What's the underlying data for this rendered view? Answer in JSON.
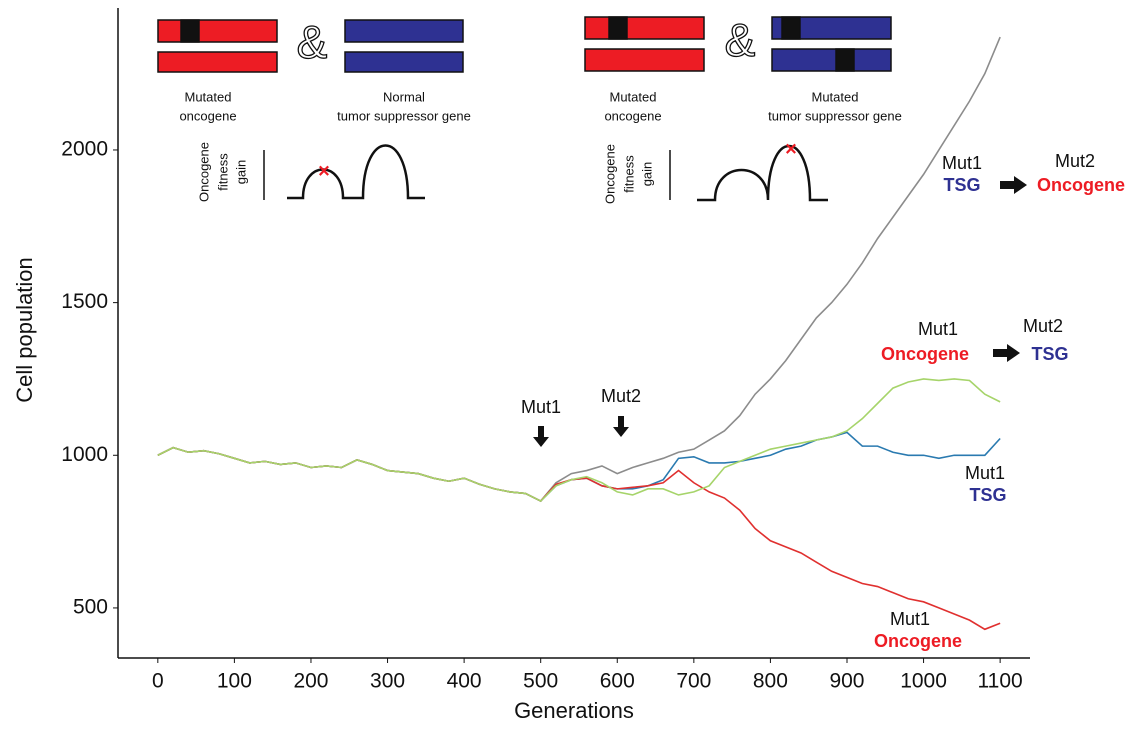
{
  "chart_data": {
    "type": "line",
    "xlabel": "Generations",
    "ylabel": "Cell population",
    "x": [
      0,
      20,
      40,
      60,
      80,
      100,
      120,
      140,
      160,
      180,
      200,
      220,
      240,
      260,
      280,
      300,
      320,
      340,
      360,
      380,
      400,
      420,
      440,
      460,
      480,
      500,
      520,
      540,
      560,
      580,
      600,
      620,
      640,
      660,
      680,
      700,
      720,
      740,
      760,
      780,
      800,
      820,
      840,
      860,
      880,
      900,
      920,
      940,
      960,
      980,
      1000,
      1020,
      1040,
      1060,
      1080,
      1100
    ],
    "series": [
      {
        "color": "#8c8c8c",
        "values": [
          1000,
          1025,
          1010,
          1015,
          1005,
          990,
          975,
          980,
          970,
          975,
          960,
          965,
          960,
          985,
          970,
          950,
          945,
          940,
          925,
          915,
          925,
          905,
          890,
          880,
          875,
          850,
          910,
          940,
          950,
          965,
          940,
          960,
          975,
          990,
          1010,
          1020,
          1050,
          1080,
          1130,
          1200,
          1250,
          1310,
          1380,
          1450,
          1500,
          1560,
          1630,
          1710,
          1780,
          1850,
          1920,
          2000,
          2080,
          2160,
          2250,
          2370
        ]
      },
      {
        "color": "#2a7ab0",
        "values": [
          1000,
          1025,
          1010,
          1015,
          1005,
          990,
          975,
          980,
          970,
          975,
          960,
          965,
          960,
          985,
          970,
          950,
          945,
          940,
          925,
          915,
          925,
          905,
          890,
          880,
          875,
          850,
          900,
          920,
          925,
          900,
          890,
          890,
          900,
          920,
          990,
          995,
          975,
          975,
          980,
          990,
          1000,
          1020,
          1030,
          1050,
          1060,
          1075,
          1030,
          1030,
          1010,
          1000,
          1000,
          990,
          1000,
          1000,
          1000,
          1055
        ]
      },
      {
        "color": "#e0302f",
        "values": [
          1000,
          1025,
          1010,
          1015,
          1005,
          990,
          975,
          980,
          970,
          975,
          960,
          965,
          960,
          985,
          970,
          950,
          945,
          940,
          925,
          915,
          925,
          905,
          890,
          880,
          875,
          850,
          905,
          920,
          925,
          900,
          890,
          895,
          900,
          910,
          950,
          910,
          880,
          860,
          820,
          760,
          720,
          700,
          680,
          650,
          620,
          600,
          580,
          570,
          550,
          530,
          520,
          500,
          480,
          460,
          430,
          450
        ]
      },
      {
        "color": "#a6d46a",
        "values": [
          1000,
          1025,
          1010,
          1015,
          1005,
          990,
          975,
          980,
          970,
          975,
          960,
          965,
          960,
          985,
          970,
          950,
          945,
          940,
          925,
          915,
          925,
          905,
          890,
          880,
          875,
          850,
          900,
          920,
          930,
          910,
          880,
          870,
          890,
          890,
          870,
          880,
          900,
          960,
          980,
          1000,
          1020,
          1030,
          1040,
          1050,
          1060,
          1080,
          1120,
          1170,
          1220,
          1240,
          1250,
          1245,
          1250,
          1245,
          1200,
          1175
        ]
      }
    ],
    "xlim": [
      -52,
      1139
    ],
    "ylim": [
      336,
      2465
    ],
    "xticks": [
      0,
      100,
      200,
      300,
      400,
      500,
      600,
      700,
      800,
      900,
      1000,
      1100
    ],
    "yticks": [
      500,
      1000,
      1500,
      2000
    ],
    "annotations": [
      "Mut1",
      "Mut2",
      "Mutated",
      "oncogene",
      "Normal",
      "tumor suppressor gene",
      "Oncogene",
      "fitness",
      "gain",
      "&",
      "Mutated",
      "oncogene",
      "Mutated",
      "tumor suppressor gene",
      "Oncogene",
      "fitness",
      "gain",
      "&",
      "Mut1",
      "TSG",
      "Mut2",
      "Oncogene",
      "Mut1",
      "Oncogene",
      "Mut2",
      "TSG",
      "Mut1",
      "TSG",
      "Mut1",
      "Oncogene"
    ]
  }
}
